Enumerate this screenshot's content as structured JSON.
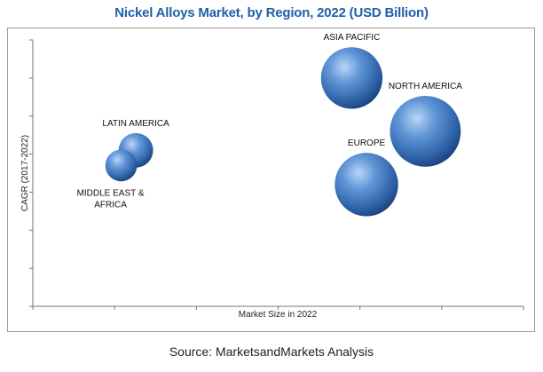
{
  "chart_data": {
    "type": "bubble",
    "title": "Nickel Alloys Market, by Region, 2022 (USD Billion)",
    "xlabel": "Market Size in 2022",
    "ylabel": "CAGR (2017-2022)",
    "grid": false,
    "series": [
      {
        "name": "ASIA PACIFIC",
        "x": 6.5,
        "y": 6.0,
        "size": 3.3
      },
      {
        "name": "NORTH AMERICA",
        "x": 8.0,
        "y": 4.6,
        "size": 3.8
      },
      {
        "name": "EUROPE",
        "x": 6.8,
        "y": 3.2,
        "size": 3.4
      },
      {
        "name": "LATIN AMERICA",
        "x": 2.1,
        "y": 4.1,
        "size": 1.85
      },
      {
        "name": "MIDDLE EAST & AFRICA",
        "x": 1.8,
        "y": 3.7,
        "size": 1.7
      }
    ]
  },
  "source": "Source: MarketsandMarkets Analysis",
  "colors": {
    "title": "#1f5fa8",
    "bubble_light": "#a9c9f0",
    "bubble_mid": "#3e78c4",
    "bubble_dark": "#17427e"
  }
}
